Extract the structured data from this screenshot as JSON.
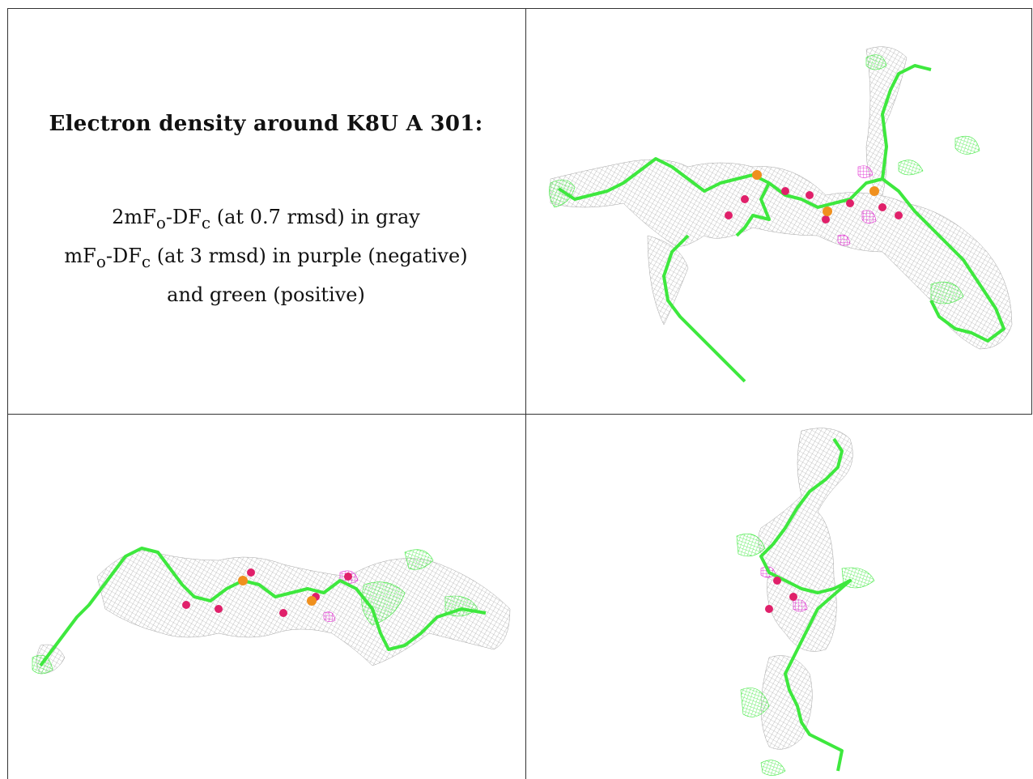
{
  "caption": {
    "title": "Electron density around K8U A 301:",
    "lines": [
      "2mFo-DFc (at 0.7 rmsd) in gray",
      "mFo-DFc (at 3 rmsd) in purple (negative)",
      "and green (positive)"
    ]
  },
  "colors": {
    "model": "#3ee83e",
    "density_2fofc": "#8c8c8c",
    "density_negative": "#e020d0",
    "density_positive": "#3ee83e",
    "oxygen": "#e0206a",
    "phosphorus": "#f0901e",
    "border": "#333333"
  },
  "panels": [
    {
      "name": "view-top-right"
    },
    {
      "name": "view-bottom-left"
    },
    {
      "name": "view-bottom-right"
    }
  ]
}
